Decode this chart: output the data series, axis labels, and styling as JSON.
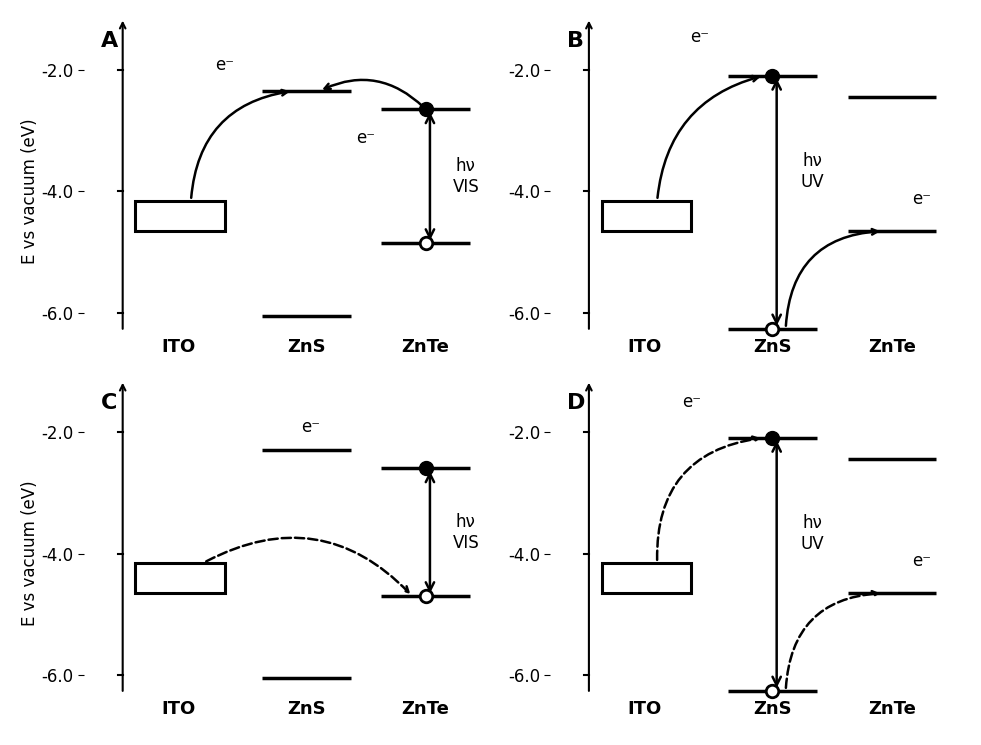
{
  "ylabel": "E vs vacuum (eV)",
  "yticks": [
    -2.0,
    -4.0,
    -6.0
  ],
  "ylim": [
    -6.8,
    -1.2
  ],
  "xlim": [
    0.0,
    4.8
  ],
  "x_ITO": 1.1,
  "x_ZnS": 2.6,
  "x_ZnTe": 4.0,
  "hw": 0.52,
  "ITO_box": {
    "xmin": 0.6,
    "xmax": 1.65,
    "ymin": -4.65,
    "ymax": -4.15
  },
  "panels": {
    "A": {
      "label": "A",
      "ZnS_CB": -2.35,
      "ZnS_VB": -6.05,
      "ZnTe_CB": -2.65,
      "ZnTe_VB": -4.85,
      "hv_label": "hν\nVIS",
      "dashed": false
    },
    "B": {
      "label": "B",
      "ZnS_CB": -2.1,
      "ZnS_VB": -6.25,
      "ZnTe_CB": -2.45,
      "ZnTe_VB": -4.65,
      "hv_label": "hν\nUV",
      "dashed": false
    },
    "C": {
      "label": "C",
      "ZnS_CB": -2.3,
      "ZnS_VB": -6.05,
      "ZnTe_CB": -2.6,
      "ZnTe_VB": -4.7,
      "hv_label": "hν\nVIS",
      "dashed": true
    },
    "D": {
      "label": "D",
      "ZnS_CB": -2.1,
      "ZnS_VB": -6.25,
      "ZnTe_CB": -2.45,
      "ZnTe_VB": -4.65,
      "hv_label": "hν\nUV",
      "dashed": true
    }
  }
}
